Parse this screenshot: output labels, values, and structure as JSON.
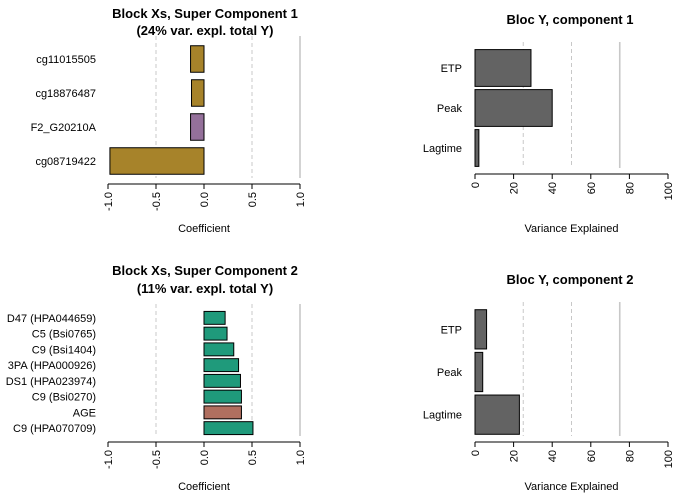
{
  "colors": {
    "gold": "#a7832a",
    "purple": "#94709a",
    "teal": "#1f9a7b",
    "brown": "#b06f5f",
    "gray": "#636363"
  },
  "chart_data": [
    {
      "type": "bar",
      "orientation": "horizontal",
      "title": "Block Xs, Super Component 1",
      "subtitle": "(24% var. expl. total Y)",
      "xlabel": "Coefficient",
      "xlim": [
        -1.0,
        1.0
      ],
      "xticks": [
        "-1.0",
        "-0.5",
        "0.0",
        "0.5",
        "1.0"
      ],
      "tick_values": [
        -1.0,
        -0.5,
        0.0,
        0.5,
        1.0
      ],
      "dashed_gridlines": [
        -0.5,
        0.5
      ],
      "solid_gridlines": [
        1.0
      ],
      "categories": [
        "cg11015505",
        "cg18876487",
        "F2_G20210A",
        "cg08719422"
      ],
      "values": [
        -0.14,
        -0.13,
        -0.14,
        -0.98
      ],
      "bar_colors": [
        "gold",
        "gold",
        "purple",
        "gold"
      ]
    },
    {
      "type": "bar",
      "orientation": "horizontal",
      "title": "Bloc Y, component 1",
      "xlabel": "Variance Explained",
      "xlim": [
        0,
        100
      ],
      "xticks": [
        "0",
        "20",
        "40",
        "60",
        "80",
        "100"
      ],
      "tick_values": [
        0,
        20,
        40,
        60,
        80,
        100
      ],
      "dashed_gridlines": [
        25,
        50
      ],
      "solid_gridlines": [
        75
      ],
      "categories": [
        "ETP",
        "Peak",
        "Lagtime"
      ],
      "values": [
        29,
        40,
        2
      ],
      "bar_colors": [
        "gray",
        "gray",
        "gray"
      ]
    },
    {
      "type": "bar",
      "orientation": "horizontal",
      "title": "Block Xs, Super Component 2",
      "subtitle": "(11% var. expl. total Y)",
      "xlabel": "Coefficient",
      "xlim": [
        -1.0,
        1.0
      ],
      "xticks": [
        "-1.0",
        "-0.5",
        "0.0",
        "0.5",
        "1.0"
      ],
      "tick_values": [
        -1.0,
        -0.5,
        0.0,
        0.5,
        1.0
      ],
      "dashed_gridlines": [
        -0.5,
        0.5
      ],
      "solid_gridlines": [
        1.0
      ],
      "categories": [
        "D47 (HPA044659)",
        "C5 (Bsi0765)",
        "C9 (Bsi1404)",
        "3PA (HPA000926)",
        "DS1 (HPA023974)",
        "C9 (Bsi0270)",
        "AGE",
        "C9 (HPA070709)"
      ],
      "values": [
        0.22,
        0.24,
        0.31,
        0.36,
        0.38,
        0.39,
        0.39,
        0.51
      ],
      "bar_colors": [
        "teal",
        "teal",
        "teal",
        "teal",
        "teal",
        "teal",
        "brown",
        "teal"
      ]
    },
    {
      "type": "bar",
      "orientation": "horizontal",
      "title": "Bloc Y, component 2",
      "xlabel": "Variance Explained",
      "xlim": [
        0,
        100
      ],
      "xticks": [
        "0",
        "20",
        "40",
        "60",
        "80",
        "100"
      ],
      "tick_values": [
        0,
        20,
        40,
        60,
        80,
        100
      ],
      "dashed_gridlines": [
        25,
        50
      ],
      "solid_gridlines": [
        75
      ],
      "categories": [
        "ETP",
        "Peak",
        "Lagtime"
      ],
      "values": [
        6,
        4,
        23
      ],
      "bar_colors": [
        "gray",
        "gray",
        "gray"
      ]
    }
  ]
}
